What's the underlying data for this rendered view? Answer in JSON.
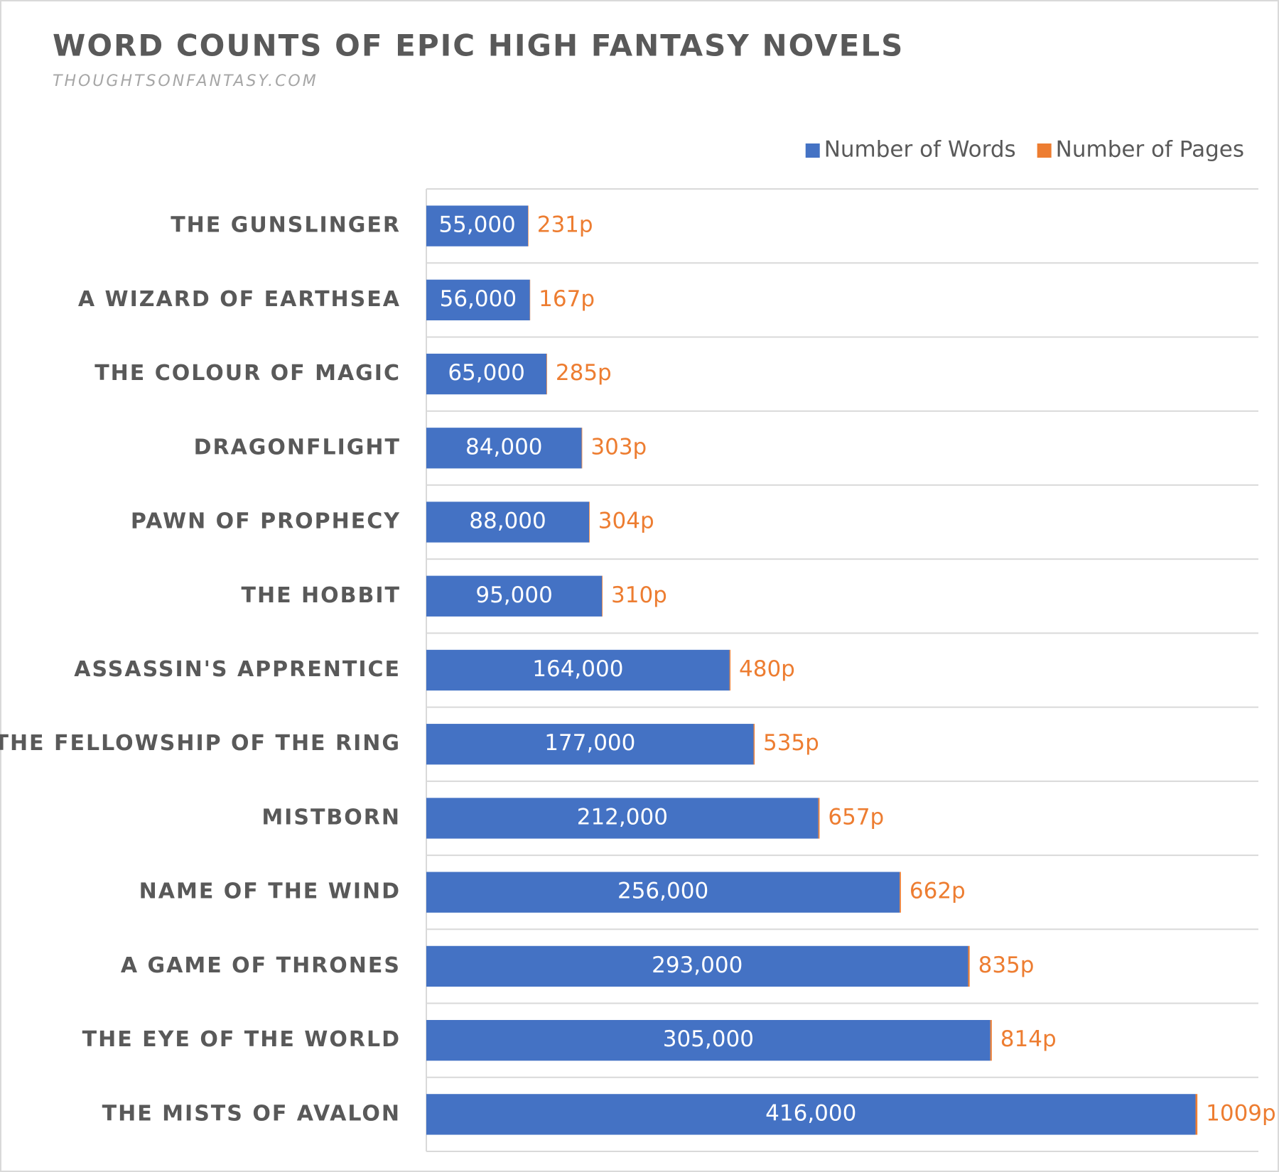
{
  "chart_data": {
    "type": "stacked-barh",
    "title": "WORD COUNTS OF EPIC HIGH FANTASY NOVELS",
    "subtitle": "THOUGHTSONFANTASY.COM",
    "categories": [
      "THE GUNSLINGER",
      "A WIZARD OF EARTHSEA",
      "THE COLOUR OF MAGIC",
      "DRAGONFLIGHT",
      "PAWN OF PROPHECY",
      "THE HOBBIT",
      "ASSASSIN'S APPRENTICE",
      "THE FELLOWSHIP OF THE RING",
      "MISTBORN",
      "NAME OF THE WIND",
      "A GAME OF THRONES",
      "THE EYE OF THE WORLD",
      "THE MISTS OF AVALON"
    ],
    "series": [
      {
        "name": "Number of Words",
        "color": "#4472c4",
        "values": [
          55000,
          56000,
          65000,
          84000,
          88000,
          95000,
          164000,
          177000,
          212000,
          256000,
          293000,
          305000,
          416000
        ],
        "value_labels": [
          "55,000",
          "56,000",
          "65,000",
          "84,000",
          "88,000",
          "95,000",
          "164,000",
          "177,000",
          "212,000",
          "256,000",
          "293,000",
          "305,000",
          "416,000"
        ]
      },
      {
        "name": "Number of Pages",
        "color": "#ed7d31",
        "values": [
          231,
          167,
          285,
          303,
          304,
          310,
          480,
          535,
          657,
          662,
          835,
          814,
          1009
        ],
        "value_labels": [
          "231p",
          "167p",
          "285p",
          "303p",
          "304p",
          "310p",
          "480p",
          "535p",
          "657p",
          "662p",
          "835p",
          "814p",
          "1009p"
        ]
      }
    ],
    "xlim": [
      0,
      450000
    ],
    "grid": true,
    "legend": "top-right"
  }
}
